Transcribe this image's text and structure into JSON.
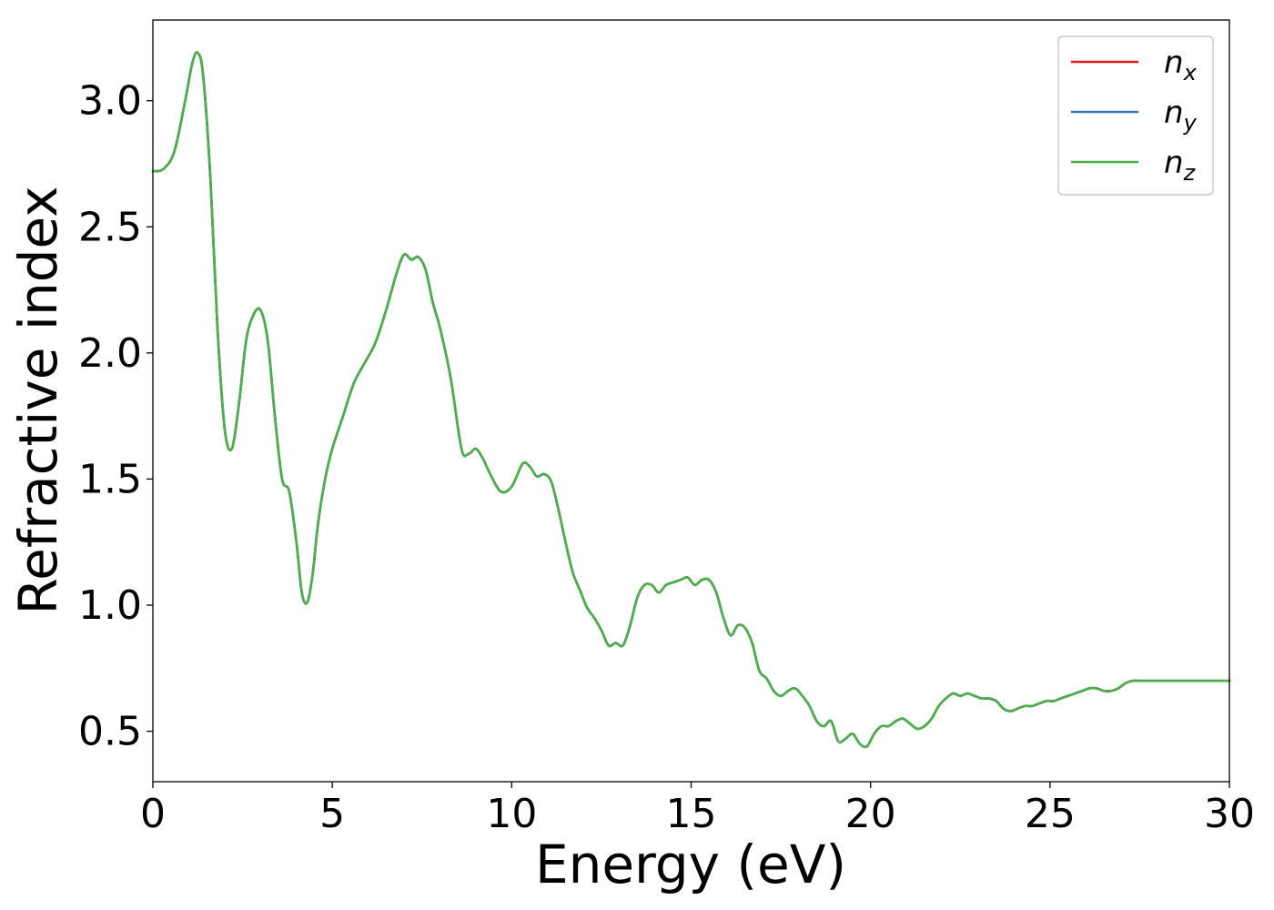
{
  "chart_data": {
    "type": "line",
    "title": "",
    "xlabel": "Energy (eV)",
    "ylabel": "Refractive index",
    "xlim": [
      0,
      30
    ],
    "ylim": [
      0.3,
      3.32
    ],
    "xticks": [
      0,
      5,
      10,
      15,
      20,
      25,
      30
    ],
    "xtick_labels": [
      "0",
      "5",
      "10",
      "15",
      "20",
      "25",
      "30"
    ],
    "yticks": [
      0.5,
      1.0,
      1.5,
      2.0,
      2.5,
      3.0
    ],
    "ytick_labels": [
      "0.5",
      "1.0",
      "1.5",
      "2.0",
      "2.5",
      "3.0"
    ],
    "grid": false,
    "legend_position": "top-right",
    "x": [
      0,
      0.3,
      0.6,
      0.9,
      1.1,
      1.25,
      1.4,
      1.6,
      1.8,
      2.0,
      2.2,
      2.4,
      2.6,
      2.8,
      3.0,
      3.2,
      3.4,
      3.6,
      3.8,
      4.0,
      4.15,
      4.3,
      4.45,
      4.6,
      4.8,
      5.0,
      5.3,
      5.6,
      5.9,
      6.2,
      6.5,
      6.8,
      7.0,
      7.2,
      7.4,
      7.6,
      7.8,
      8.0,
      8.3,
      8.6,
      8.8,
      9.0,
      9.2,
      9.4,
      9.7,
      10.0,
      10.3,
      10.5,
      10.7,
      10.9,
      11.1,
      11.3,
      11.5,
      11.7,
      11.9,
      12.1,
      12.3,
      12.5,
      12.7,
      12.9,
      13.1,
      13.3,
      13.5,
      13.7,
      13.9,
      14.1,
      14.3,
      14.5,
      14.7,
      14.9,
      15.1,
      15.3,
      15.5,
      15.7,
      15.9,
      16.1,
      16.3,
      16.5,
      16.7,
      16.9,
      17.1,
      17.3,
      17.5,
      17.7,
      17.9,
      18.1,
      18.3,
      18.5,
      18.7,
      18.9,
      19.1,
      19.3,
      19.5,
      19.7,
      19.9,
      20.1,
      20.3,
      20.5,
      20.7,
      20.9,
      21.1,
      21.3,
      21.5,
      21.7,
      21.9,
      22.1,
      22.3,
      22.5,
      22.7,
      22.9,
      23.1,
      23.3,
      23.5,
      23.7,
      23.9,
      24.1,
      24.3,
      24.5,
      24.7,
      24.9,
      25.1,
      25.3,
      25.5,
      25.7,
      25.9,
      26.1,
      26.3,
      26.5,
      26.7,
      26.9,
      27.1,
      27.3,
      27.5,
      27.7,
      27.9,
      28.1,
      28.3,
      28.5,
      28.7,
      28.9,
      29.1,
      29.3,
      29.5,
      29.7,
      30.0
    ],
    "series": [
      {
        "name": "n_x",
        "color": "#e41a1c",
        "values": [
          2.72,
          2.73,
          2.8,
          3.0,
          3.15,
          3.19,
          3.1,
          2.7,
          2.1,
          1.7,
          1.62,
          1.8,
          2.05,
          2.15,
          2.17,
          2.05,
          1.75,
          1.5,
          1.45,
          1.25,
          1.05,
          1.01,
          1.12,
          1.32,
          1.5,
          1.62,
          1.75,
          1.88,
          1.96,
          2.04,
          2.17,
          2.32,
          2.39,
          2.37,
          2.38,
          2.33,
          2.2,
          2.1,
          1.9,
          1.62,
          1.6,
          1.62,
          1.58,
          1.52,
          1.45,
          1.47,
          1.56,
          1.55,
          1.51,
          1.52,
          1.49,
          1.38,
          1.25,
          1.13,
          1.06,
          0.99,
          0.95,
          0.9,
          0.84,
          0.85,
          0.84,
          0.92,
          1.03,
          1.08,
          1.08,
          1.05,
          1.08,
          1.09,
          1.1,
          1.11,
          1.08,
          1.1,
          1.1,
          1.05,
          0.95,
          0.88,
          0.92,
          0.91,
          0.85,
          0.74,
          0.71,
          0.66,
          0.64,
          0.66,
          0.67,
          0.64,
          0.6,
          0.54,
          0.52,
          0.54,
          0.46,
          0.47,
          0.49,
          0.45,
          0.44,
          0.49,
          0.52,
          0.52,
          0.54,
          0.55,
          0.53,
          0.51,
          0.52,
          0.55,
          0.6,
          0.63,
          0.65,
          0.64,
          0.65,
          0.64,
          0.63,
          0.63,
          0.62,
          0.59,
          0.58,
          0.59,
          0.6,
          0.6,
          0.61,
          0.62,
          0.62,
          0.63,
          0.64,
          0.65,
          0.66,
          0.67,
          0.67,
          0.66,
          0.66,
          0.67,
          0.69,
          0.7,
          0.7,
          0.7,
          0.7,
          0.7,
          0.7,
          0.7,
          0.7,
          0.7,
          0.7,
          0.7,
          0.7,
          0.7,
          0.7
        ]
      },
      {
        "name": "n_y",
        "color": "#377eb8",
        "values": [
          2.72,
          2.73,
          2.8,
          3.0,
          3.15,
          3.19,
          3.1,
          2.7,
          2.1,
          1.7,
          1.62,
          1.8,
          2.05,
          2.15,
          2.17,
          2.05,
          1.75,
          1.5,
          1.45,
          1.25,
          1.05,
          1.01,
          1.12,
          1.32,
          1.5,
          1.62,
          1.75,
          1.88,
          1.96,
          2.04,
          2.17,
          2.32,
          2.39,
          2.37,
          2.38,
          2.33,
          2.2,
          2.1,
          1.9,
          1.62,
          1.6,
          1.62,
          1.58,
          1.52,
          1.45,
          1.47,
          1.56,
          1.55,
          1.51,
          1.52,
          1.49,
          1.38,
          1.25,
          1.13,
          1.06,
          0.99,
          0.95,
          0.9,
          0.84,
          0.85,
          0.84,
          0.92,
          1.03,
          1.08,
          1.08,
          1.05,
          1.08,
          1.09,
          1.1,
          1.11,
          1.08,
          1.1,
          1.1,
          1.05,
          0.95,
          0.88,
          0.92,
          0.91,
          0.85,
          0.74,
          0.71,
          0.66,
          0.64,
          0.66,
          0.67,
          0.64,
          0.6,
          0.54,
          0.52,
          0.54,
          0.46,
          0.47,
          0.49,
          0.45,
          0.44,
          0.49,
          0.52,
          0.52,
          0.54,
          0.55,
          0.53,
          0.51,
          0.52,
          0.55,
          0.6,
          0.63,
          0.65,
          0.64,
          0.65,
          0.64,
          0.63,
          0.63,
          0.62,
          0.59,
          0.58,
          0.59,
          0.6,
          0.6,
          0.61,
          0.62,
          0.62,
          0.63,
          0.64,
          0.65,
          0.66,
          0.67,
          0.67,
          0.66,
          0.66,
          0.67,
          0.69,
          0.7,
          0.7,
          0.7,
          0.7,
          0.7,
          0.7,
          0.7,
          0.7,
          0.7,
          0.7,
          0.7,
          0.7,
          0.7,
          0.7
        ]
      },
      {
        "name": "n_z",
        "color": "#4daf4a",
        "values": [
          2.72,
          2.73,
          2.8,
          3.0,
          3.15,
          3.19,
          3.1,
          2.7,
          2.1,
          1.7,
          1.62,
          1.8,
          2.05,
          2.15,
          2.17,
          2.05,
          1.75,
          1.5,
          1.45,
          1.25,
          1.05,
          1.01,
          1.12,
          1.32,
          1.5,
          1.62,
          1.75,
          1.88,
          1.96,
          2.04,
          2.17,
          2.32,
          2.39,
          2.37,
          2.38,
          2.33,
          2.2,
          2.1,
          1.9,
          1.62,
          1.6,
          1.62,
          1.58,
          1.52,
          1.45,
          1.47,
          1.56,
          1.55,
          1.51,
          1.52,
          1.49,
          1.38,
          1.25,
          1.13,
          1.06,
          0.99,
          0.95,
          0.9,
          0.84,
          0.85,
          0.84,
          0.92,
          1.03,
          1.08,
          1.08,
          1.05,
          1.08,
          1.09,
          1.1,
          1.11,
          1.08,
          1.1,
          1.1,
          1.05,
          0.95,
          0.88,
          0.92,
          0.91,
          0.85,
          0.74,
          0.71,
          0.66,
          0.64,
          0.66,
          0.67,
          0.64,
          0.6,
          0.54,
          0.52,
          0.54,
          0.46,
          0.47,
          0.49,
          0.45,
          0.44,
          0.49,
          0.52,
          0.52,
          0.54,
          0.55,
          0.53,
          0.51,
          0.52,
          0.55,
          0.6,
          0.63,
          0.65,
          0.64,
          0.65,
          0.64,
          0.63,
          0.63,
          0.62,
          0.59,
          0.58,
          0.59,
          0.6,
          0.6,
          0.61,
          0.62,
          0.62,
          0.63,
          0.64,
          0.65,
          0.66,
          0.67,
          0.67,
          0.66,
          0.66,
          0.67,
          0.69,
          0.7,
          0.7,
          0.7,
          0.7,
          0.7,
          0.7,
          0.7,
          0.7,
          0.7,
          0.7,
          0.7,
          0.7,
          0.7,
          0.7
        ]
      }
    ],
    "legend": [
      {
        "symbol": "n",
        "subscript": "x",
        "color": "#e41a1c"
      },
      {
        "symbol": "n",
        "subscript": "y",
        "color": "#377eb8"
      },
      {
        "symbol": "n",
        "subscript": "z",
        "color": "#4daf4a"
      }
    ]
  }
}
